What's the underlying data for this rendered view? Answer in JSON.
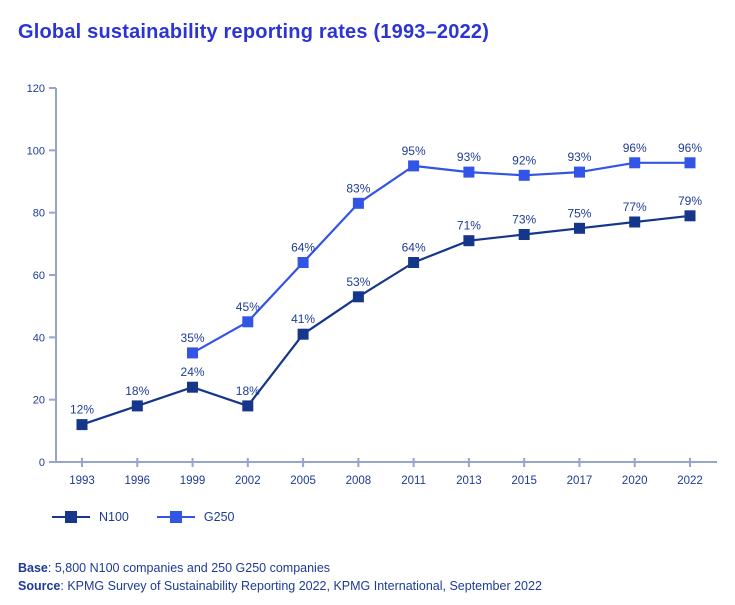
{
  "title": "Global sustainability reporting rates (1993–2022)",
  "chart_data": {
    "type": "line",
    "categories": [
      "1993",
      "1996",
      "1999",
      "2002",
      "2005",
      "2008",
      "2011",
      "2013",
      "2015",
      "2017",
      "2020",
      "2022"
    ],
    "series": [
      {
        "name": "N100",
        "color": "#16368C",
        "values": [
          12,
          18,
          24,
          18,
          41,
          53,
          64,
          71,
          73,
          75,
          77,
          79
        ]
      },
      {
        "name": "G250",
        "color": "#3355E6",
        "values": [
          null,
          null,
          35,
          45,
          64,
          83,
          95,
          93,
          92,
          93,
          96,
          96
        ]
      }
    ],
    "title": "Global sustainability reporting rates (1993–2022)",
    "xlabel": "",
    "ylabel": "",
    "ylim": [
      0,
      120
    ],
    "ytick_step": 20,
    "yticks": [
      0,
      20,
      40,
      60,
      80,
      100,
      120
    ],
    "data_label_suffix": "%",
    "grid": false,
    "legend_position": "bottom-left",
    "marker": "square"
  },
  "colors": {
    "title": "#2C35D4",
    "axis_line": "#95A5CC",
    "tick_label": "#1E3B97",
    "data_label": "#1E3B97",
    "footer_text": "#1E3B97"
  },
  "footer": {
    "base_label": "Base",
    "base_text": ": 5,800 N100 companies and 250 G250 companies",
    "source_label": "Source",
    "source_text": ": KPMG Survey of Sustainability Reporting 2022, KPMG International, September 2022"
  }
}
